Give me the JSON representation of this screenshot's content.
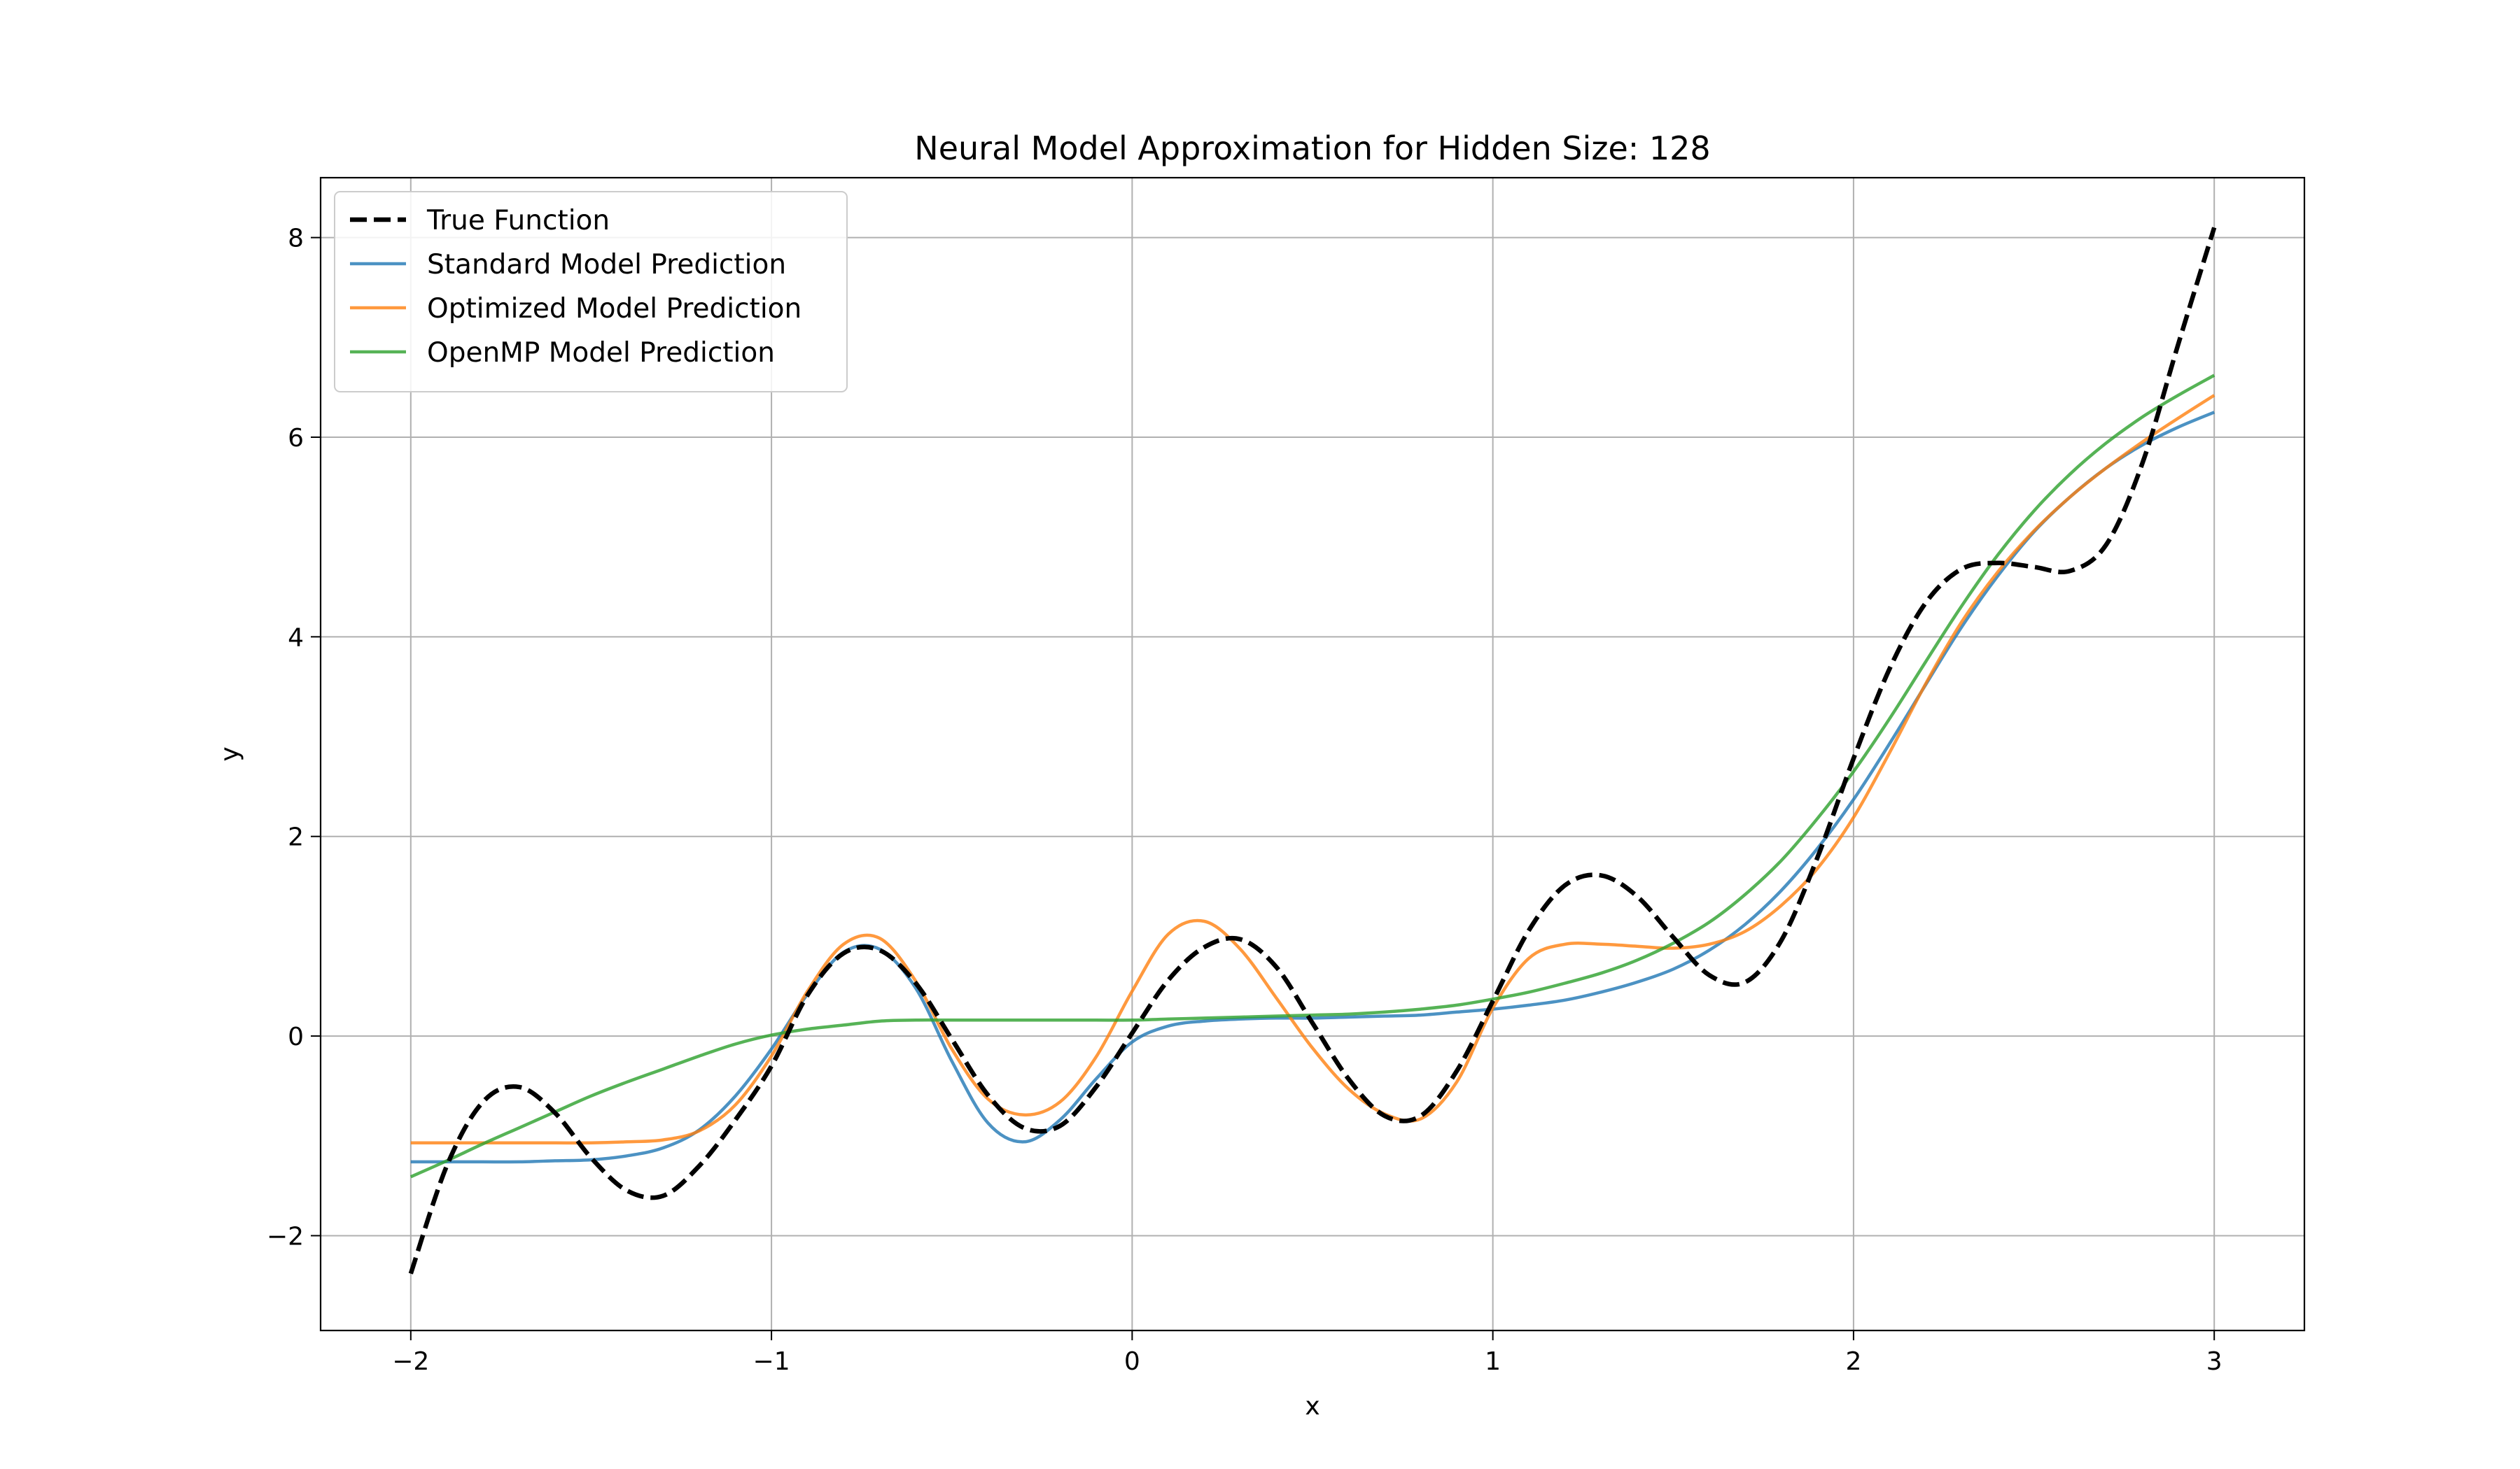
{
  "chart_data": {
    "type": "line",
    "title": "Neural Model Approximation for Hidden Size: 128",
    "xlabel": "x",
    "ylabel": "y",
    "xlim": [
      -2.25,
      3.25
    ],
    "ylim": [
      -2.95,
      8.6
    ],
    "xticks": [
      -2,
      -1,
      0,
      1,
      2,
      3
    ],
    "xtick_labels": [
      "−2",
      "−1",
      "0",
      "1",
      "2",
      "3"
    ],
    "yticks": [
      -2,
      0,
      2,
      4,
      6,
      8
    ],
    "ytick_labels": [
      "−2",
      "0",
      "2",
      "4",
      "6",
      "8"
    ],
    "grid": true,
    "legend_position": "top-left",
    "series": [
      {
        "name": "True Function",
        "color": "#000000",
        "style": "dashed",
        "x": [
          -2,
          -1.9,
          -1.8,
          -1.7,
          -1.6,
          -1.5,
          -1.4,
          -1.3,
          -1.2,
          -1.1,
          -1,
          -0.9,
          -0.8,
          -0.7,
          -0.6,
          -0.5,
          -0.4,
          -0.3,
          -0.2,
          -0.1,
          0,
          0.1,
          0.2,
          0.3,
          0.4,
          0.5,
          0.6,
          0.7,
          0.8,
          0.9,
          1,
          1.1,
          1.2,
          1.3,
          1.4,
          1.5,
          1.6,
          1.7,
          1.8,
          1.9,
          2,
          2.1,
          2.2,
          2.3,
          2.4,
          2.5,
          2.6,
          2.7,
          2.8,
          2.9,
          3
        ],
        "y": [
          -2.38,
          -1.3,
          -0.66,
          -0.51,
          -0.77,
          -1.22,
          -1.55,
          -1.6,
          -1.3,
          -0.84,
          -0.3,
          0.41,
          0.83,
          0.86,
          0.53,
          -0.03,
          -0.59,
          -0.92,
          -0.9,
          -0.51,
          0.03,
          0.56,
          0.89,
          0.97,
          0.69,
          0.13,
          -0.43,
          -0.8,
          -0.8,
          -0.35,
          0.35,
          1.06,
          1.51,
          1.61,
          1.4,
          0.99,
          0.61,
          0.54,
          0.96,
          1.79,
          2.78,
          3.68,
          4.34,
          4.68,
          4.74,
          4.7,
          4.66,
          4.92,
          5.73,
          6.93,
          8.1
        ]
      },
      {
        "name": "Standard Model Prediction",
        "color": "#1f77b4",
        "style": "solid",
        "x": [
          -2,
          -1.9,
          -1.8,
          -1.7,
          -1.6,
          -1.5,
          -1.4,
          -1.3,
          -1.2,
          -1.1,
          -1,
          -0.9,
          -0.8,
          -0.7,
          -0.6,
          -0.5,
          -0.4,
          -0.3,
          -0.2,
          -0.1,
          0,
          0.1,
          0.2,
          0.3,
          0.4,
          0.5,
          0.6,
          0.7,
          0.8,
          0.9,
          1,
          1.1,
          1.2,
          1.3,
          1.4,
          1.5,
          1.6,
          1.7,
          1.8,
          1.9,
          2,
          2.1,
          2.2,
          2.3,
          2.4,
          2.5,
          2.6,
          2.7,
          2.8,
          2.9,
          3
        ],
        "y": [
          -1.26,
          -1.26,
          -1.26,
          -1.26,
          -1.25,
          -1.24,
          -1.2,
          -1.12,
          -0.94,
          -0.6,
          -0.13,
          0.42,
          0.84,
          0.87,
          0.48,
          -0.25,
          -0.87,
          -1.06,
          -0.84,
          -0.43,
          -0.06,
          0.1,
          0.15,
          0.17,
          0.18,
          0.18,
          0.19,
          0.2,
          0.21,
          0.24,
          0.27,
          0.31,
          0.36,
          0.44,
          0.54,
          0.67,
          0.86,
          1.12,
          1.46,
          1.88,
          2.37,
          2.93,
          3.52,
          4.1,
          4.61,
          5.05,
          5.4,
          5.69,
          5.92,
          6.1,
          6.25
        ]
      },
      {
        "name": "Optimized Model Prediction",
        "color": "#ff7f0e",
        "style": "solid",
        "x": [
          -2,
          -1.9,
          -1.8,
          -1.7,
          -1.6,
          -1.5,
          -1.4,
          -1.3,
          -1.2,
          -1.1,
          -1,
          -0.9,
          -0.8,
          -0.7,
          -0.6,
          -0.5,
          -0.4,
          -0.3,
          -0.2,
          -0.1,
          0,
          0.1,
          0.2,
          0.3,
          0.4,
          0.5,
          0.6,
          0.7,
          0.8,
          0.9,
          1,
          1.1,
          1.2,
          1.3,
          1.4,
          1.5,
          1.6,
          1.7,
          1.8,
          1.9,
          2,
          2.1,
          2.2,
          2.3,
          2.4,
          2.5,
          2.6,
          2.7,
          2.8,
          2.9,
          3
        ],
        "y": [
          -1.07,
          -1.07,
          -1.07,
          -1.07,
          -1.07,
          -1.07,
          -1.06,
          -1.04,
          -0.95,
          -0.69,
          -0.2,
          0.45,
          0.92,
          0.98,
          0.55,
          -0.13,
          -0.63,
          -0.79,
          -0.66,
          -0.21,
          0.45,
          1.02,
          1.15,
          0.87,
          0.38,
          -0.12,
          -0.53,
          -0.78,
          -0.83,
          -0.46,
          0.28,
          0.78,
          0.92,
          0.92,
          0.9,
          0.88,
          0.92,
          1.05,
          1.31,
          1.68,
          2.19,
          2.84,
          3.53,
          4.15,
          4.65,
          5.06,
          5.4,
          5.69,
          5.95,
          6.19,
          6.42
        ]
      },
      {
        "name": "OpenMP Model Prediction",
        "color": "#2ca02c",
        "style": "solid",
        "x": [
          -2,
          -1.9,
          -1.8,
          -1.7,
          -1.6,
          -1.5,
          -1.4,
          -1.3,
          -1.2,
          -1.1,
          -1,
          -0.9,
          -0.8,
          -0.7,
          -0.6,
          -0.5,
          -0.4,
          -0.3,
          -0.2,
          -0.1,
          0,
          0.1,
          0.2,
          0.3,
          0.4,
          0.5,
          0.6,
          0.7,
          0.8,
          0.9,
          1,
          1.1,
          1.2,
          1.3,
          1.4,
          1.5,
          1.6,
          1.7,
          1.8,
          1.9,
          2,
          2.1,
          2.2,
          2.3,
          2.4,
          2.5,
          2.6,
          2.7,
          2.8,
          2.9,
          3
        ],
        "y": [
          -1.41,
          -1.25,
          -1.08,
          -0.92,
          -0.76,
          -0.6,
          -0.46,
          -0.33,
          -0.2,
          -0.08,
          0.01,
          0.07,
          0.11,
          0.15,
          0.16,
          0.16,
          0.16,
          0.16,
          0.16,
          0.16,
          0.16,
          0.17,
          0.18,
          0.19,
          0.2,
          0.21,
          0.22,
          0.24,
          0.27,
          0.31,
          0.37,
          0.44,
          0.53,
          0.63,
          0.76,
          0.93,
          1.14,
          1.42,
          1.76,
          2.18,
          2.65,
          3.18,
          3.75,
          4.31,
          4.82,
          5.26,
          5.63,
          5.94,
          6.2,
          6.42,
          6.62
        ]
      }
    ]
  }
}
